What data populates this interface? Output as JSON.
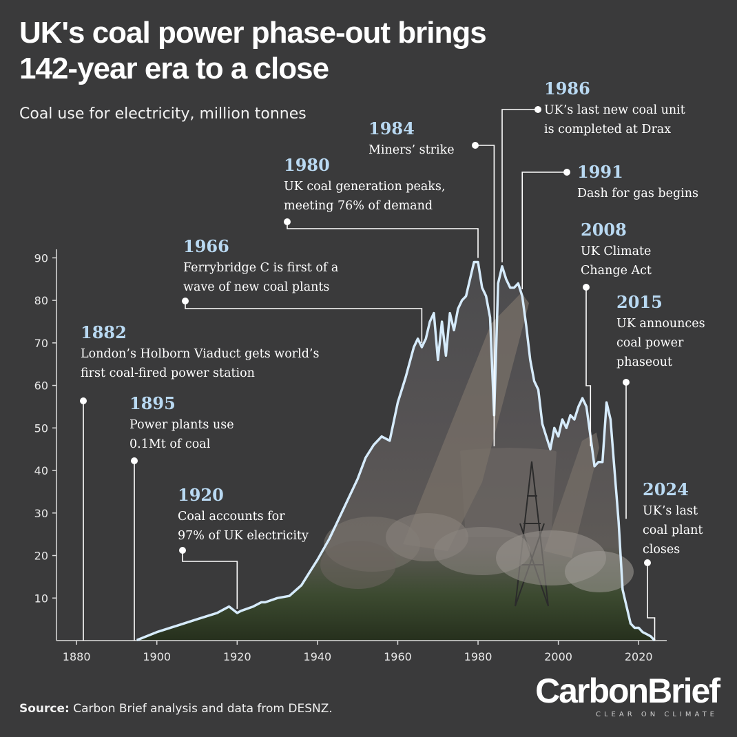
{
  "title": "UK's coal power phase-out brings\n142-year era to a close",
  "subtitle": "Coal use for electricity, million tonnes",
  "source": {
    "label": "Source:",
    "text": "Carbon Brief analysis and data from DESNZ."
  },
  "logo": {
    "name": "CarbonBrief",
    "tagline": "CLEAR ON CLIMATE"
  },
  "colors": {
    "background": "#3a3a3b",
    "line": "#d6ebfb",
    "year": "#b9d9f2",
    "text": "#ffffff"
  },
  "chart_data": {
    "type": "line",
    "xlim": [
      1875,
      2027
    ],
    "ylim": [
      0,
      92
    ],
    "xticks": [
      1880,
      1900,
      1920,
      1940,
      1960,
      1980,
      2000,
      2020
    ],
    "yticks": [
      10,
      20,
      30,
      40,
      50,
      60,
      70,
      80,
      90
    ],
    "grid": false,
    "x": [
      1895,
      1900,
      1905,
      1910,
      1915,
      1918,
      1920,
      1921,
      1924,
      1926,
      1927,
      1930,
      1933,
      1936,
      1938,
      1940,
      1943,
      1946,
      1948,
      1950,
      1952,
      1954,
      1956,
      1958,
      1960,
      1962,
      1964,
      1965,
      1966,
      1967,
      1968,
      1969,
      1970,
      1971,
      1972,
      1973,
      1974,
      1975,
      1976,
      1977,
      1978,
      1979,
      1980,
      1981,
      1982,
      1983,
      1984,
      1985,
      1986,
      1987,
      1988,
      1989,
      1990,
      1991,
      1992,
      1993,
      1994,
      1995,
      1996,
      1997,
      1998,
      1999,
      2000,
      2001,
      2002,
      2003,
      2004,
      2005,
      2006,
      2007,
      2008,
      2009,
      2010,
      2011,
      2012,
      2013,
      2014,
      2015,
      2016,
      2017,
      2018,
      2019,
      2020,
      2021,
      2022,
      2023,
      2024
    ],
    "values": [
      0.1,
      2,
      3.5,
      5,
      6.5,
      8,
      6.5,
      7,
      8,
      9,
      9,
      10,
      10.5,
      13,
      16,
      19,
      24,
      30,
      34,
      38,
      43,
      46,
      48,
      47,
      56,
      62,
      69,
      71,
      69,
      71,
      75,
      77,
      66,
      75,
      67,
      77,
      73,
      78,
      80,
      81,
      85,
      89,
      89,
      83,
      81,
      76,
      53,
      84,
      88,
      85,
      83,
      83,
      84,
      81,
      74,
      66,
      61,
      59,
      51,
      48,
      45,
      50,
      48,
      52,
      50,
      53,
      52,
      55,
      57,
      55,
      48,
      41,
      42,
      42,
      56,
      52,
      40,
      28,
      12,
      8,
      4,
      3,
      3,
      2,
      1.5,
      1,
      0
    ]
  },
  "annotations": [
    {
      "year": "1882",
      "lines": [
        "London’s Holborn Viaduct gets world’s",
        "first coal-fired power station"
      ]
    },
    {
      "year": "1895",
      "lines": [
        "Power plants use",
        "0.1Mt of coal"
      ]
    },
    {
      "year": "1920",
      "lines": [
        "Coal accounts for",
        "97% of UK electricity"
      ]
    },
    {
      "year": "1966",
      "lines": [
        "Ferrybridge C is first of a",
        "wave of new coal plants"
      ]
    },
    {
      "year": "1980",
      "lines": [
        "UK coal generation peaks,",
        "meeting 76% of demand"
      ]
    },
    {
      "year": "1984",
      "lines": [
        "Miners’ strike"
      ]
    },
    {
      "year": "1986",
      "lines": [
        "UK’s last new coal unit",
        "is completed at Drax"
      ]
    },
    {
      "year": "1991",
      "lines": [
        "Dash for gas begins"
      ]
    },
    {
      "year": "2008",
      "lines": [
        "UK Climate",
        "Change Act"
      ]
    },
    {
      "year": "2015",
      "lines": [
        "UK announces",
        "coal power",
        "phaseout"
      ]
    },
    {
      "year": "2024",
      "lines": [
        "UK’s last",
        "coal plant",
        "closes"
      ]
    }
  ]
}
